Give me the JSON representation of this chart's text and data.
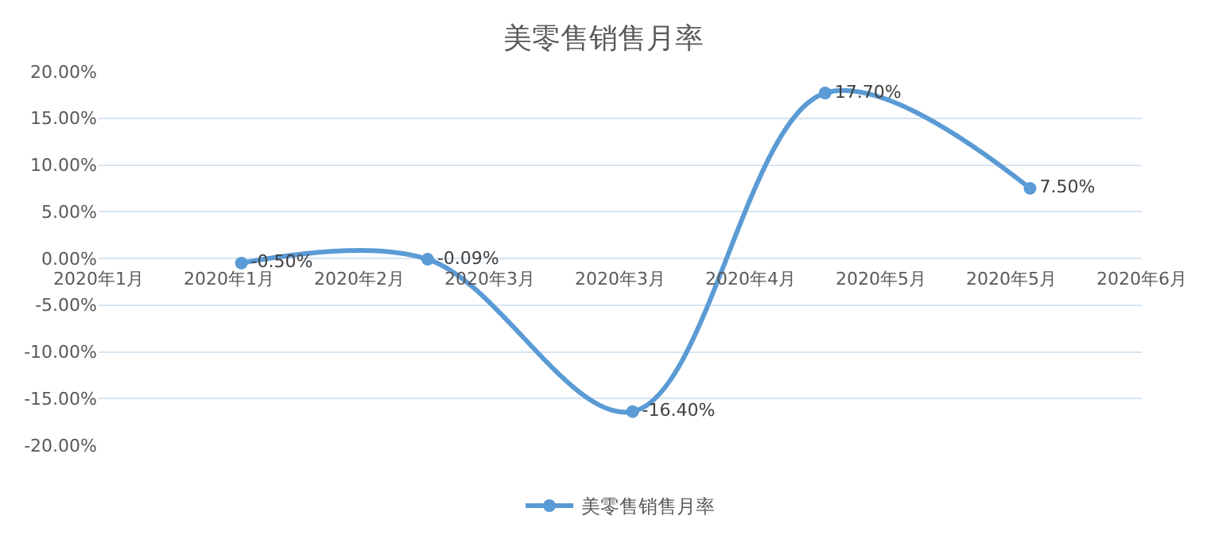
{
  "chart_data": {
    "type": "line",
    "title": "美零售销售月率",
    "x": [
      "2020-01-24",
      "2020-02-23",
      "2020-03-27",
      "2020-04-27",
      "2020-05-30"
    ],
    "series": [
      {
        "name": "美零售销售月率",
        "color": "#5b9bd5",
        "values": [
          -0.5,
          -0.09,
          -16.4,
          17.7,
          7.5
        ],
        "value_labels": [
          "-0.50%",
          "-0.09%",
          "-16.40%",
          "17.70%",
          "7.50%"
        ]
      }
    ],
    "xlim": [
      "2020-01-01",
      "2020-06-17"
    ],
    "xticks": [
      {
        "value": "2020-01-01",
        "label": "2020年1月"
      },
      {
        "value": "2020-01-22",
        "label": "2020年1月"
      },
      {
        "value": "2020-02-12",
        "label": "2020年2月"
      },
      {
        "value": "2020-03-04",
        "label": "2020年3月"
      },
      {
        "value": "2020-03-25",
        "label": "2020年3月"
      },
      {
        "value": "2020-04-15",
        "label": "2020年4月"
      },
      {
        "value": "2020-05-06",
        "label": "2020年5月"
      },
      {
        "value": "2020-05-27",
        "label": "2020年5月"
      },
      {
        "value": "2020-06-17",
        "label": "2020年6月"
      }
    ],
    "ylim": [
      -20,
      20
    ],
    "yticks": [
      {
        "value": 20,
        "label": "20.00%"
      },
      {
        "value": 15,
        "label": "15.00%"
      },
      {
        "value": 10,
        "label": "10.00%"
      },
      {
        "value": 5,
        "label": "5.00%"
      },
      {
        "value": 0,
        "label": "0.00%"
      },
      {
        "value": -5,
        "label": "-5.00%"
      },
      {
        "value": -10,
        "label": "-10.00%"
      },
      {
        "value": -15,
        "label": "-15.00%"
      },
      {
        "value": -20,
        "label": "-20.00%"
      }
    ],
    "grid": "y",
    "legend": "bottom",
    "marker": "circle",
    "line_style": "solid"
  }
}
